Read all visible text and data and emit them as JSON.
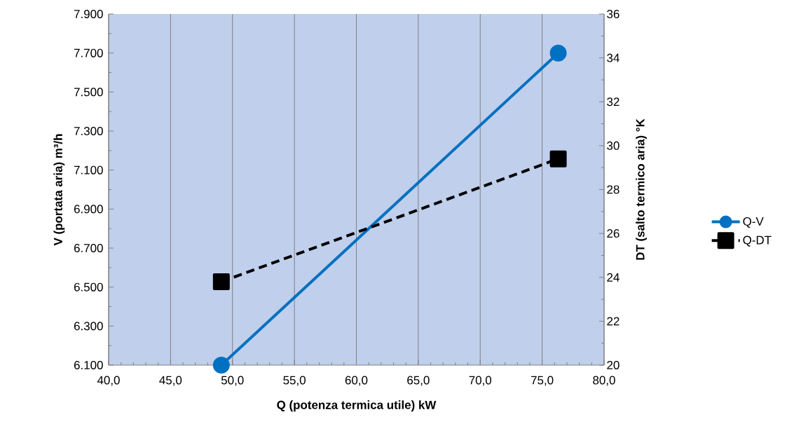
{
  "chart_data": {
    "type": "line",
    "xlabel": "Q (potenza termica utile) kW",
    "ylabel": "V (portata aria) m³/h",
    "y2label": "DT (salto termico aria) °K",
    "x": [
      49.1,
      76.3
    ],
    "series": [
      {
        "name": "Q-V",
        "color": "#0070c0",
        "values": [
          6100,
          7700
        ],
        "marker": "circle",
        "line_style": "solid"
      },
      {
        "name": "Q-DT",
        "color": "#000000",
        "values": [
          23.8,
          29.4
        ],
        "marker": "square",
        "line_style": "dashed",
        "axis": "y2"
      }
    ],
    "xlim": [
      40,
      80
    ],
    "xticks": [
      {
        "value": 40,
        "label": "40,0"
      },
      {
        "value": 45,
        "label": "45,0"
      },
      {
        "value": 50,
        "label": "50,0"
      },
      {
        "value": 55,
        "label": "55,0"
      },
      {
        "value": 60,
        "label": "60,0"
      },
      {
        "value": 65,
        "label": "65,0"
      },
      {
        "value": 70,
        "label": "70,0"
      },
      {
        "value": 75,
        "label": "75,0"
      },
      {
        "value": 80,
        "label": "80,0"
      }
    ],
    "ylim": [
      6100,
      7900
    ],
    "yticks": [
      {
        "value": 6100,
        "label": "6.100"
      },
      {
        "value": 6300,
        "label": "6.300"
      },
      {
        "value": 6500,
        "label": "6.500"
      },
      {
        "value": 6700,
        "label": "6.700"
      },
      {
        "value": 6900,
        "label": "6.900"
      },
      {
        "value": 7100,
        "label": "7.100"
      },
      {
        "value": 7300,
        "label": "7.300"
      },
      {
        "value": 7500,
        "label": "7.500"
      },
      {
        "value": 7700,
        "label": "7.700"
      },
      {
        "value": 7900,
        "label": "7.900"
      }
    ],
    "y2lim": [
      20,
      36
    ],
    "y2ticks": [
      20,
      22,
      24,
      26,
      28,
      30,
      32,
      34,
      36
    ],
    "grid": "x",
    "legend": "right"
  }
}
